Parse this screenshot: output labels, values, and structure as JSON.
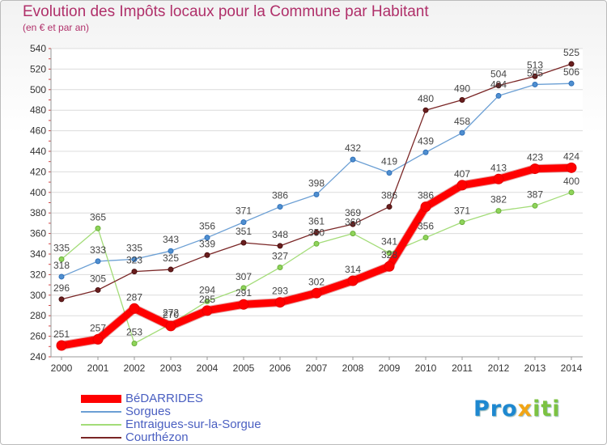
{
  "title": "Evolution des Impôts locaux pour la Commune par Habitant",
  "subtitle": "(en € et par an)",
  "logo": {
    "p1": "Pro",
    "x": "x",
    "i": "iti"
  },
  "chart_data": {
    "type": "line",
    "title": "Evolution des Impôts locaux pour la Commune par Habitant",
    "subtitle": "(en € et par an)",
    "xlabel": "",
    "ylabel": "",
    "ylim": [
      240,
      540
    ],
    "yticks": [
      240,
      260,
      280,
      300,
      320,
      340,
      360,
      380,
      400,
      420,
      440,
      460,
      480,
      500,
      520,
      540
    ],
    "categories": [
      "2000",
      "2001",
      "2002",
      "2003",
      "2004",
      "2005",
      "2006",
      "2007",
      "2008",
      "2009",
      "2010",
      "2011",
      "2012",
      "2013",
      "2014"
    ],
    "grid": "horizontal",
    "legend_position": "bottom-left",
    "series": [
      {
        "name": "BéDARRIDES",
        "color": "#ff0000",
        "values": [
          251,
          257,
          287,
          270,
          285,
          291,
          293,
          302,
          314,
          328,
          386,
          407,
          413,
          423,
          424
        ],
        "labels": [
          "251",
          "257",
          "287",
          "270",
          "285",
          "291",
          "293",
          "302",
          "314",
          "328",
          "386",
          "407",
          "413",
          "423",
          "424"
        ]
      },
      {
        "name": "Sorgues",
        "color": "#6b9fd4",
        "values": [
          318,
          333,
          335,
          343,
          356,
          371,
          386,
          398,
          432,
          419,
          439,
          458,
          494,
          505,
          506
        ],
        "labels": [
          "318",
          "333",
          "335",
          "343",
          "356",
          "371",
          "386",
          "398",
          "432",
          "419",
          "439",
          "458",
          "494",
          "505",
          "506"
        ]
      },
      {
        "name": "Entraigues-sur-la-Sorgue",
        "color": "#a3dc78",
        "values": [
          335,
          365,
          253,
          272,
          294,
          307,
          327,
          350,
          360,
          341,
          356,
          371,
          382,
          387,
          400
        ],
        "labels": [
          "335",
          "365",
          "253",
          "272",
          "294",
          "307",
          "327",
          "350",
          "360",
          "341",
          "356",
          "371",
          "382",
          "387",
          "400"
        ]
      },
      {
        "name": "Courthézon",
        "color": "#7a2626",
        "values": [
          296,
          305,
          323,
          325,
          339,
          351,
          348,
          361,
          369,
          386,
          480,
          490,
          504,
          513,
          525
        ],
        "labels": [
          "296",
          "305",
          "323",
          "325",
          "339",
          "351",
          "348",
          "361",
          "369",
          "386",
          "480",
          "490",
          "504",
          "513",
          "525"
        ]
      }
    ]
  }
}
